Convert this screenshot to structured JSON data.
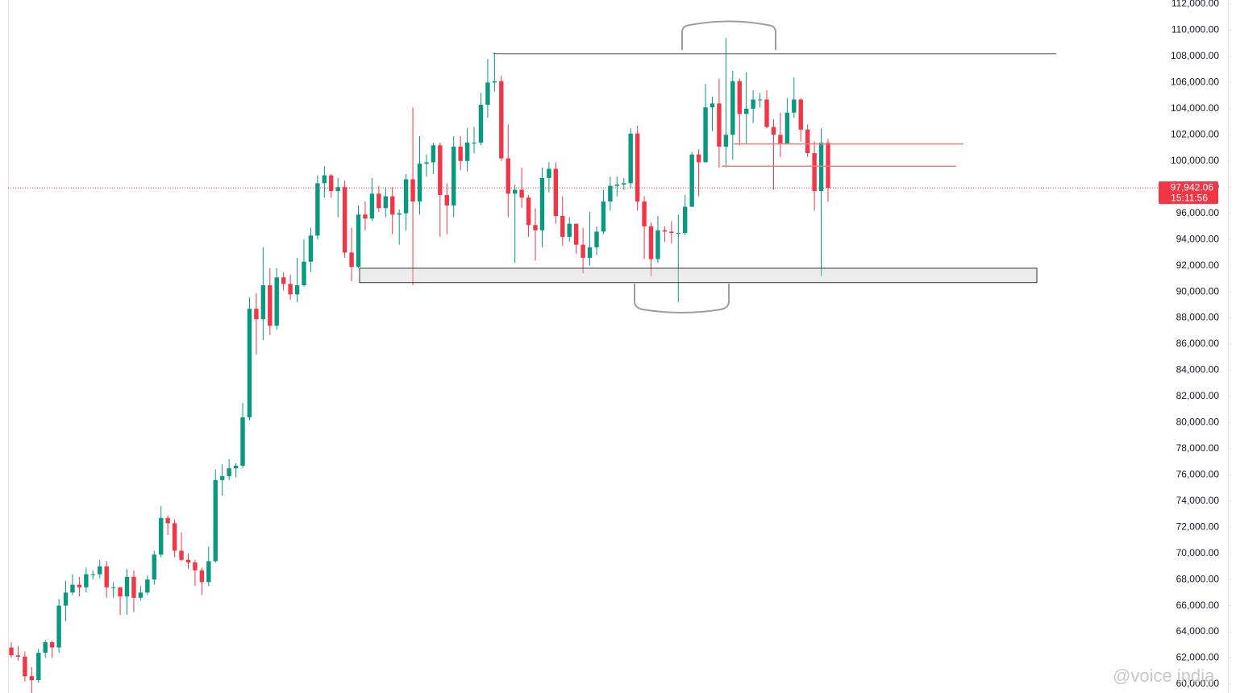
{
  "chart_data": {
    "type": "candlestick",
    "open": [
      62800,
      62200,
      62100,
      60600,
      60300,
      62400,
      63200,
      62800,
      66000,
      67000,
      67600,
      67400,
      68400,
      68400,
      69000,
      67400,
      67400,
      66700,
      68200,
      66600,
      67000,
      68000,
      69900,
      72700,
      72300,
      70200,
      69500,
      69300,
      68700,
      67800,
      69400,
      75600,
      75900,
      76500,
      76700,
      80400,
      88700,
      87900,
      90500,
      87400,
      91100,
      90600,
      89800,
      90500,
      92300,
      94300,
      98300,
      98900,
      97700,
      98000,
      93000,
      91900,
      95900,
      95600,
      97500,
      96400,
      97300,
      95900,
      96000,
      98600,
      96900,
      99800,
      99900,
      101200,
      97400,
      96600,
      101100,
      100000,
      101400,
      101400,
      104300,
      106000,
      106100,
      100200,
      97500,
      97800,
      97200,
      95100,
      94700,
      98700,
      99400,
      95800,
      94200,
      95200,
      93600,
      92600,
      93400,
      94600,
      96900,
      98100,
      98200,
      98300,
      102100,
      96900,
      95000,
      92500,
      94700,
      94600,
      94500,
      94500,
      96500,
      100500,
      99900,
      104100,
      104400,
      101100,
      102000,
      106100,
      103600,
      104000,
      104700,
      104700,
      102600,
      102000,
      101300,
      103700,
      104700,
      102400,
      100600,
      97700,
      101400
    ],
    "high": [
      63200,
      62900,
      62500,
      61300,
      62700,
      63400,
      63300,
      66500,
      67900,
      68400,
      68200,
      68900,
      68700,
      69500,
      69400,
      67800,
      67400,
      68800,
      68700,
      67500,
      68300,
      70200,
      73600,
      72900,
      72600,
      71600,
      70000,
      69500,
      68900,
      70500,
      76400,
      76800,
      77200,
      76900,
      81500,
      89600,
      89900,
      93400,
      91800,
      91800,
      91500,
      91300,
      92600,
      94000,
      94900,
      98900,
      99600,
      99000,
      98700,
      98500,
      94900,
      96600,
      96900,
      98700,
      98100,
      98000,
      98000,
      96300,
      99000,
      104100,
      101900,
      100500,
      101400,
      101400,
      98300,
      101900,
      101900,
      102500,
      102600,
      105200,
      107800,
      108300,
      106500,
      102800,
      98200,
      99500,
      97400,
      96400,
      99500,
      99900,
      99900,
      97300,
      95700,
      95200,
      94900,
      96100,
      95000,
      97800,
      98800,
      98800,
      98700,
      102500,
      102700,
      97300,
      95300,
      95800,
      95000,
      95400,
      95900,
      97400,
      100700,
      100900,
      105900,
      104900,
      106300,
      109400,
      106900,
      106300,
      106800,
      105400,
      105200,
      105400,
      103200,
      103700,
      104800,
      106400,
      104800,
      102800,
      101500,
      102500,
      101700
    ],
    "low": [
      62000,
      61800,
      60200,
      58900,
      60100,
      62000,
      62000,
      62400,
      64800,
      66800,
      66700,
      67000,
      68000,
      68100,
      66600,
      66600,
      65300,
      65300,
      65500,
      66400,
      66800,
      67600,
      69700,
      71400,
      69700,
      69400,
      68800,
      67500,
      66800,
      67500,
      69300,
      74400,
      75600,
      75800,
      76500,
      80200,
      85200,
      86300,
      86700,
      87100,
      90100,
      89400,
      89200,
      90400,
      91500,
      94000,
      97200,
      97200,
      95700,
      92600,
      90800,
      91800,
      94700,
      95400,
      96100,
      95700,
      94400,
      93600,
      94700,
      90500,
      95900,
      98800,
      99000,
      94200,
      94400,
      95700,
      99300,
      99200,
      100600,
      101200,
      103300,
      105300,
      100000,
      95700,
      92200,
      96400,
      94200,
      92400,
      93400,
      97600,
      95200,
      93500,
      93800,
      92900,
      91400,
      92000,
      92800,
      94400,
      96200,
      97300,
      97800,
      97900,
      96200,
      92500,
      91200,
      92200,
      93800,
      93700,
      89200,
      94300,
      96500,
      97300,
      99900,
      102300,
      99500,
      99500,
      100100,
      101200,
      101300,
      102900,
      104100,
      102500,
      97800,
      100300,
      101300,
      103300,
      101500,
      100300,
      96200,
      91200,
      96900
    ],
    "close": [
      62200,
      62100,
      60600,
      60300,
      62400,
      63200,
      62800,
      66000,
      67000,
      67600,
      67400,
      68400,
      68400,
      69000,
      67400,
      67400,
      66700,
      68200,
      66600,
      67000,
      68000,
      69900,
      72700,
      72300,
      70200,
      69500,
      69300,
      68700,
      67800,
      69400,
      75600,
      75900,
      76500,
      76700,
      80400,
      88700,
      87900,
      90500,
      87400,
      91100,
      90600,
      89800,
      90500,
      92300,
      94300,
      98300,
      98900,
      97700,
      98000,
      93000,
      91900,
      95900,
      95600,
      97500,
      96400,
      97300,
      95900,
      96000,
      98600,
      96900,
      99800,
      99900,
      101200,
      97400,
      96600,
      101100,
      100000,
      101400,
      101400,
      104300,
      106000,
      106100,
      100200,
      97500,
      97800,
      97200,
      95100,
      94700,
      98700,
      99400,
      95800,
      94200,
      95200,
      93600,
      92600,
      93400,
      94600,
      96900,
      98100,
      98200,
      98300,
      102100,
      96900,
      95000,
      92500,
      94700,
      94600,
      94500,
      94500,
      96500,
      100500,
      99900,
      104100,
      104400,
      101100,
      102000,
      106100,
      103600,
      104000,
      104700,
      104700,
      102600,
      102000,
      101300,
      103700,
      104700,
      102400,
      100600,
      97700,
      101400,
      97942.06
    ],
    "up_color": "#089981",
    "down_color": "#f23645",
    "ylim": [
      59320,
      112310
    ],
    "yticks": [
      {
        "value": 60000,
        "label": "60,000.00"
      },
      {
        "value": 62000,
        "label": "62,000.00"
      },
      {
        "value": 64000,
        "label": "64,000.00"
      },
      {
        "value": 66000,
        "label": "66,000.00"
      },
      {
        "value": 68000,
        "label": "68,000.00"
      },
      {
        "value": 70000,
        "label": "70,000.00"
      },
      {
        "value": 72000,
        "label": "72,000.00"
      },
      {
        "value": 74000,
        "label": "74,000.00"
      },
      {
        "value": 76000,
        "label": "76,000.00"
      },
      {
        "value": 78000,
        "label": "78,000.00"
      },
      {
        "value": 80000,
        "label": "80,000.00"
      },
      {
        "value": 82000,
        "label": "82,000.00"
      },
      {
        "value": 84000,
        "label": "84,000.00"
      },
      {
        "value": 86000,
        "label": "86,000.00"
      },
      {
        "value": 88000,
        "label": "88,000.00"
      },
      {
        "value": 90000,
        "label": "90,000.00"
      },
      {
        "value": 92000,
        "label": "92,000.00"
      },
      {
        "value": 94000,
        "label": "94,000.00"
      },
      {
        "value": 96000,
        "label": "96,000.00"
      },
      {
        "value": 98000,
        "label": "98,000.00"
      },
      {
        "value": 100000,
        "label": "100,000.00"
      },
      {
        "value": 102000,
        "label": "102,000.00"
      },
      {
        "value": 104000,
        "label": "104,000.00"
      },
      {
        "value": 106000,
        "label": "106,000.00"
      },
      {
        "value": 108000,
        "label": "108,000.00"
      },
      {
        "value": 110000,
        "label": "110,000.00"
      },
      {
        "value": 112000,
        "label": "112,000.00"
      }
    ],
    "last_price_label": "97,942.06",
    "countdown": "15:11:56",
    "resistance_level": 108200,
    "support_zone": [
      90700,
      91800
    ],
    "red_levels": [
      101300,
      99600
    ],
    "watermark": "@voice india"
  }
}
